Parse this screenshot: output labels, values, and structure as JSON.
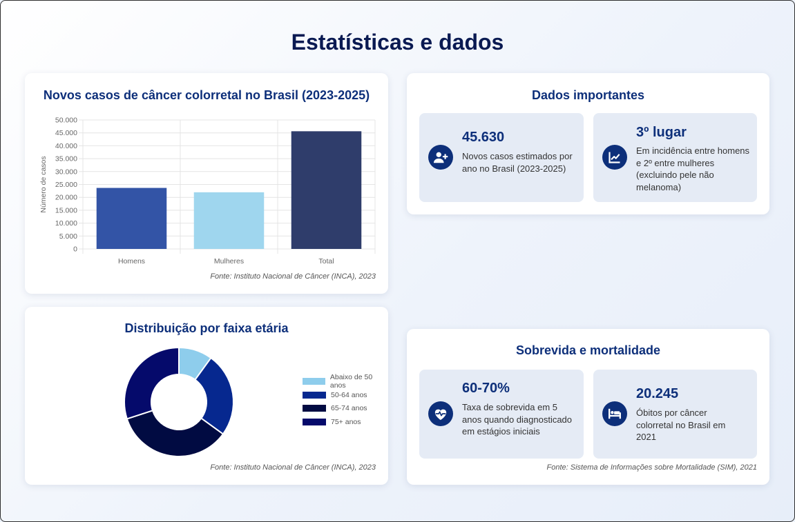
{
  "page_title": "Estatísticas e dados",
  "cards": {
    "bar": {
      "title": "Novos casos de câncer colorretal no Brasil (2023-2025)",
      "source": "Fonte: Instituto Nacional de Câncer (INCA), 2023"
    },
    "donut": {
      "title": "Distribuição por faixa etária",
      "source": "Fonte: Instituto Nacional de Câncer (INCA), 2023"
    },
    "important": {
      "title": "Dados importantes",
      "stats": [
        {
          "value": "45.630",
          "description": "Novos casos estimados por ano no Brasil (2023-2025)",
          "icon": "user-plus-icon"
        },
        {
          "value": "3º lugar",
          "description": "Em incidência entre homens e 2º entre mulheres (excluindo pele não melanoma)",
          "icon": "chart-line-icon"
        }
      ]
    },
    "survival": {
      "title": "Sobrevida e mortalidade",
      "stats": [
        {
          "value": "60-70%",
          "description": "Taxa de sobrevida em 5 anos quando diagnosticado em estágios iniciais",
          "icon": "heart-pulse-icon"
        },
        {
          "value": "20.245",
          "description": "Óbitos por câncer colorretal no Brasil em 2021",
          "icon": "hospital-bed-icon"
        }
      ],
      "source": "Fonte: Sistema de Informações sobre Mortalidade (SIM), 2021"
    }
  },
  "chart_data": [
    {
      "type": "bar",
      "title": "Novos casos de câncer colorretal no Brasil (2023-2025)",
      "categories": [
        "Homens",
        "Mulheres",
        "Total"
      ],
      "values": [
        23660,
        21970,
        45630
      ],
      "colors": [
        "#3354a6",
        "#9fd6ee",
        "#2f3d6b"
      ],
      "ylabel": "Número de casos",
      "xlabel": "",
      "ylim": [
        0,
        50000
      ],
      "yticks": [
        0,
        5000,
        10000,
        15000,
        20000,
        25000,
        30000,
        35000,
        40000,
        45000,
        50000
      ],
      "ytick_labels": [
        "0",
        "5.000",
        "10.000",
        "15.000",
        "20.000",
        "25.000",
        "30.000",
        "35.000",
        "40.000",
        "45.000",
        "50.000"
      ],
      "grid": true
    },
    {
      "type": "pie",
      "title": "Distribuição por faixa etária",
      "categories": [
        "Abaixo de 50 anos",
        "50-64 anos",
        "65-74 anos",
        "75+ anos"
      ],
      "values": [
        10,
        25,
        35,
        30
      ],
      "colors": [
        "#8ecdec",
        "#06288f",
        "#010b42",
        "#050a6b"
      ],
      "legend_position": "right"
    }
  ]
}
